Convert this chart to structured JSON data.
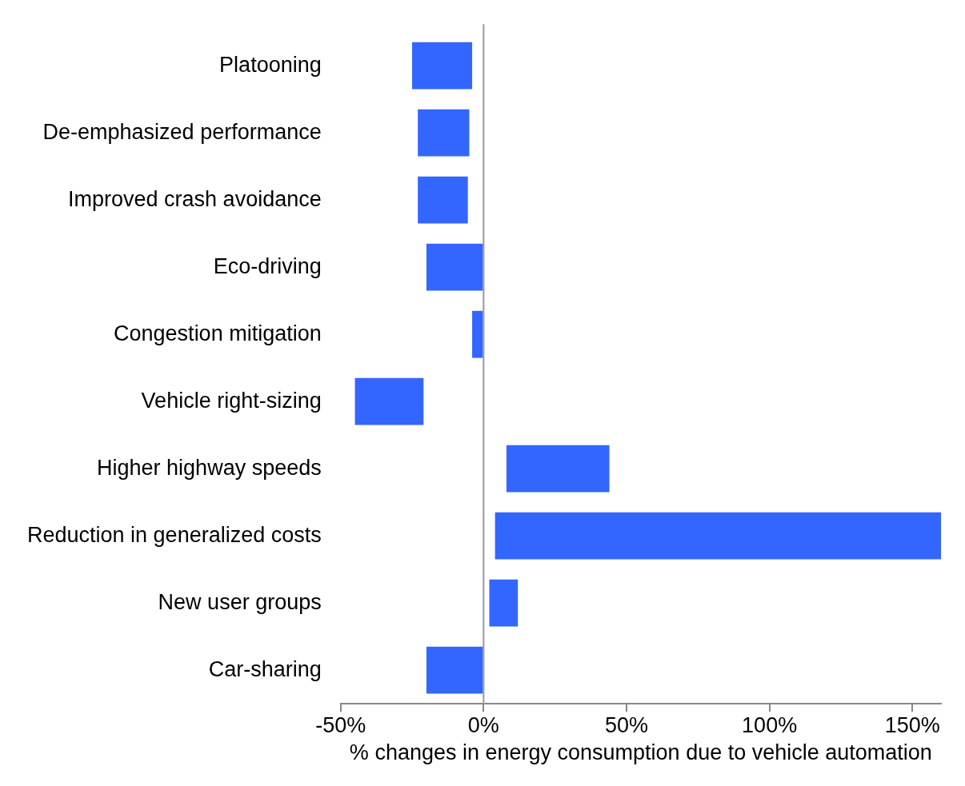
{
  "chart_data": {
    "type": "bar",
    "orientation": "horizontal",
    "xlabel": "% changes in energy consumption due to vehicle automation",
    "categories": [
      "Platooning",
      "De-emphasized performance",
      "Improved crash avoidance",
      "Eco-driving",
      "Congestion mitigation",
      "Vehicle right-sizing",
      "Higher highway speeds",
      "Reduction in generalized costs",
      "New user groups",
      "Car-sharing"
    ],
    "base": [
      -25,
      -23,
      -23,
      -20,
      -4,
      -45,
      8,
      4,
      2,
      -20
    ],
    "values": [
      21,
      18,
      17.5,
      20,
      4,
      24,
      36,
      156,
      10,
      20
    ],
    "color": "#3366ff",
    "xlim": [
      -50,
      160
    ],
    "xticks": [
      {
        "value": -50,
        "label": "-50%"
      },
      {
        "value": 0,
        "label": "0%"
      },
      {
        "value": 50,
        "label": "50%"
      },
      {
        "value": 100,
        "label": "100%"
      },
      {
        "value": 150,
        "label": "150%"
      }
    ],
    "ref_lines": [
      {
        "axis": "x",
        "value": 0,
        "color": "#999999"
      }
    ],
    "grid": false,
    "legend": false
  }
}
